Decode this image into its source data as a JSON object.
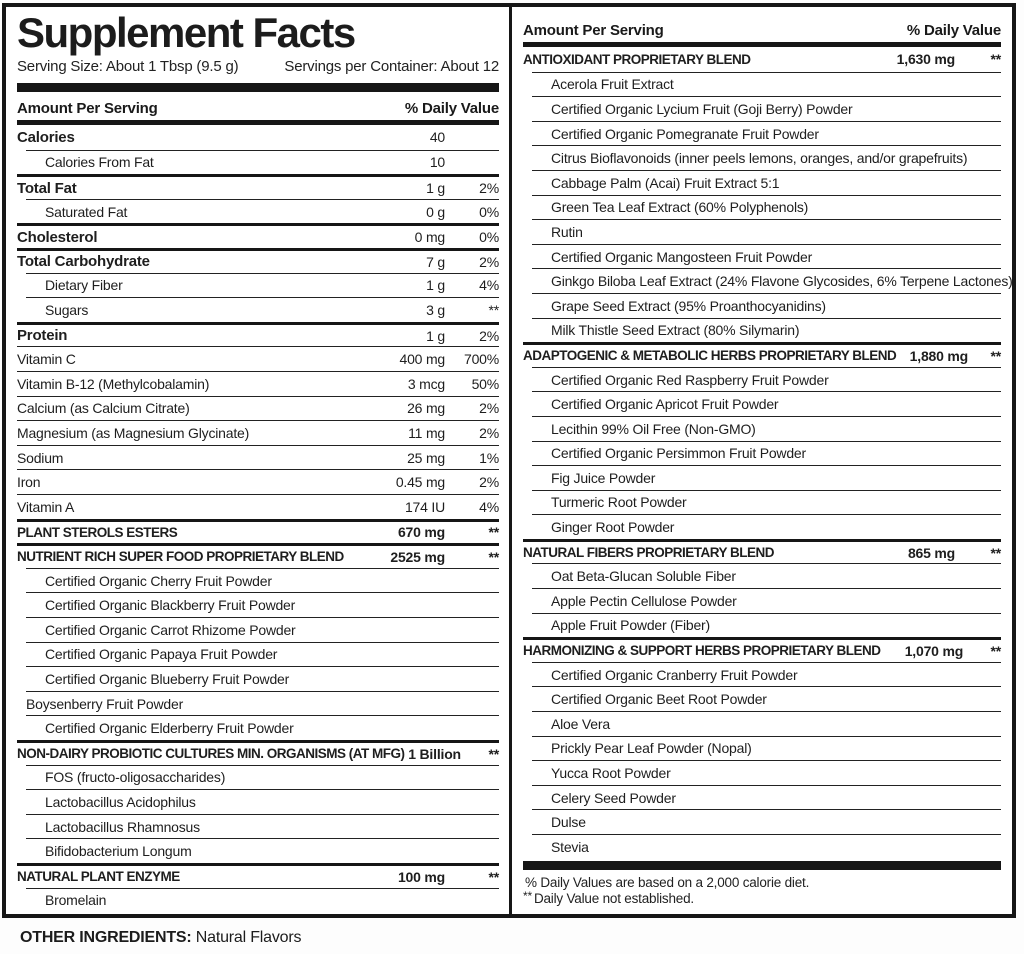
{
  "colors": {
    "ink": "#1a1a1a",
    "background": "#ffffff"
  },
  "title": "Supplement Facts",
  "serving_size": "Serving Size:  About 1 Tbsp (9.5 g)",
  "servings_per_container": "Servings per Container: About 12",
  "column_header": {
    "amount": "Amount Per Serving",
    "dv": "% Daily Value"
  },
  "left_rows": [
    {
      "name": "Calories",
      "amount": "40",
      "dv": "",
      "style": "main",
      "rule": "none"
    },
    {
      "name": "Calories From Fat",
      "amount": "10",
      "dv": "",
      "style": "sub",
      "rule": "thin"
    },
    {
      "name": "Total Fat",
      "amount": "1 g",
      "dv": "2%",
      "style": "main",
      "rule": "medium"
    },
    {
      "name": "Saturated Fat",
      "amount": "0 g",
      "dv": "0%",
      "style": "sub",
      "rule": "thin"
    },
    {
      "name": "Cholesterol",
      "amount": "0 mg",
      "dv": "0%",
      "style": "main",
      "rule": "medium"
    },
    {
      "name": "Total Carbohydrate",
      "amount": "7 g",
      "dv": "2%",
      "style": "main",
      "rule": "medium"
    },
    {
      "name": "Dietary Fiber",
      "amount": "1 g",
      "dv": "4%",
      "style": "sub",
      "rule": "thin"
    },
    {
      "name": "Sugars",
      "amount": "3 g",
      "dv": "**",
      "style": "sub",
      "rule": "thin"
    },
    {
      "name": "Protein",
      "amount": "1 g",
      "dv": "2%",
      "style": "main",
      "rule": "medium"
    },
    {
      "name": "Vitamin C",
      "amount": "400 mg",
      "dv": "700%",
      "style": "plain",
      "rule": "thin"
    },
    {
      "name": "Vitamin B-12 (Methylcobalamin)",
      "amount": "3 mcg",
      "dv": "50%",
      "style": "plain",
      "rule": "thin"
    },
    {
      "name": "Calcium (as Calcium Citrate)",
      "amount": "26 mg",
      "dv": "2%",
      "style": "plain",
      "rule": "thin"
    },
    {
      "name": "Magnesium (as Magnesium Glycinate)",
      "amount": "11 mg",
      "dv": "2%",
      "style": "plain",
      "rule": "thin"
    },
    {
      "name": "Sodium",
      "amount": "25 mg",
      "dv": "1%",
      "style": "plain",
      "rule": "thin"
    },
    {
      "name": "Iron",
      "amount": "0.45 mg",
      "dv": "2%",
      "style": "plain",
      "rule": "thin"
    },
    {
      "name": "Vitamin A",
      "amount": "174 IU",
      "dv": "4%",
      "style": "plain",
      "rule": "thin"
    },
    {
      "name": "PLANT STEROLS ESTERS",
      "amount": "670 mg",
      "dv": "**",
      "style": "section",
      "rule": "medium"
    },
    {
      "name": "NUTRIENT RICH SUPER FOOD PROPRIETARY BLEND",
      "amount": "2525 mg",
      "dv": "**",
      "style": "section",
      "rule": "medium"
    },
    {
      "name": "Certified Organic Cherry Fruit Powder",
      "amount": "",
      "dv": "",
      "style": "sub",
      "rule": "thin"
    },
    {
      "name": "Certified Organic Blackberry Fruit Powder",
      "amount": "",
      "dv": "",
      "style": "sub",
      "rule": "thin"
    },
    {
      "name": "Certified Organic Carrot Rhizome Powder",
      "amount": "",
      "dv": "",
      "style": "sub",
      "rule": "thin"
    },
    {
      "name": "Certified Organic Papaya Fruit Powder",
      "amount": "",
      "dv": "",
      "style": "sub",
      "rule": "thin"
    },
    {
      "name": "Certified Organic Blueberry Fruit Powder",
      "amount": "",
      "dv": "",
      "style": "sub",
      "rule": "thin"
    },
    {
      "name": "Boysenberry Fruit Powder",
      "amount": "",
      "dv": "",
      "style": "subflat",
      "rule": "thin"
    },
    {
      "name": "Certified Organic Elderberry Fruit Powder",
      "amount": "",
      "dv": "",
      "style": "sub",
      "rule": "thin"
    },
    {
      "name": "NON-DAIRY PROBIOTIC CULTURES MIN. ORGANISMS (AT MFG)",
      "amount": "1 Billion",
      "dv": "**",
      "style": "section",
      "rule": "medium"
    },
    {
      "name": "FOS (fructo-oligosaccharides)",
      "amount": "",
      "dv": "",
      "style": "sub",
      "rule": "thin"
    },
    {
      "name": "Lactobacillus Acidophilus",
      "amount": "",
      "dv": "",
      "style": "sub",
      "rule": "thin"
    },
    {
      "name": "Lactobacillus Rhamnosus",
      "amount": "",
      "dv": "",
      "style": "sub",
      "rule": "thin"
    },
    {
      "name": "Bifidobacterium Longum",
      "amount": "",
      "dv": "",
      "style": "sub",
      "rule": "thin"
    },
    {
      "name": "NATURAL PLANT ENZYME",
      "amount": "100 mg",
      "dv": "**",
      "style": "section",
      "rule": "medium"
    },
    {
      "name": "Bromelain",
      "amount": "",
      "dv": "",
      "style": "sub",
      "rule": "thin"
    }
  ],
  "right_rows": [
    {
      "name": "ANTIOXIDANT PROPRIETARY BLEND",
      "amount": "1,630 mg",
      "dv": "**",
      "style": "section",
      "rule": "none"
    },
    {
      "name": "Acerola Fruit Extract",
      "amount": "",
      "dv": "",
      "style": "sub",
      "rule": "thin"
    },
    {
      "name": "Certified Organic Lycium Fruit (Goji Berry) Powder",
      "amount": "",
      "dv": "",
      "style": "sub",
      "rule": "thin"
    },
    {
      "name": "Certified Organic Pomegranate Fruit Powder",
      "amount": "",
      "dv": "",
      "style": "sub",
      "rule": "thin"
    },
    {
      "name": "Citrus Bioflavonoids (inner peels lemons, oranges, and/or grapefruits)",
      "amount": "",
      "dv": "",
      "style": "sub",
      "rule": "thin"
    },
    {
      "name": "Cabbage Palm (Acai) Fruit Extract 5:1",
      "amount": "",
      "dv": "",
      "style": "sub",
      "rule": "thin"
    },
    {
      "name": "Green Tea Leaf Extract (60% Polyphenols)",
      "amount": "",
      "dv": "",
      "style": "sub",
      "rule": "thin"
    },
    {
      "name": "Rutin",
      "amount": "",
      "dv": "",
      "style": "sub",
      "rule": "thin"
    },
    {
      "name": "Certified Organic Mangosteen Fruit Powder",
      "amount": "",
      "dv": "",
      "style": "sub",
      "rule": "thin"
    },
    {
      "name": "Ginkgo Biloba Leaf Extract (24% Flavone Glycosides, 6% Terpene Lactones)",
      "amount": "",
      "dv": "",
      "style": "sub",
      "rule": "thin"
    },
    {
      "name": "Grape Seed Extract (95% Proanthocyanidins)",
      "amount": "",
      "dv": "",
      "style": "sub",
      "rule": "thin"
    },
    {
      "name": "Milk Thistle Seed Extract (80% Silymarin)",
      "amount": "",
      "dv": "",
      "style": "sub",
      "rule": "thin"
    },
    {
      "name": "ADAPTOGENIC & METABOLIC HERBS PROPRIETARY BLEND",
      "amount": "1,880 mg",
      "dv": "**",
      "style": "section",
      "rule": "medium"
    },
    {
      "name": "Certified Organic Red Raspberry Fruit Powder",
      "amount": "",
      "dv": "",
      "style": "sub",
      "rule": "thin"
    },
    {
      "name": "Certified Organic Apricot Fruit Powder",
      "amount": "",
      "dv": "",
      "style": "sub",
      "rule": "thin"
    },
    {
      "name": "Lecithin 99% Oil Free (Non-GMO)",
      "amount": "",
      "dv": "",
      "style": "sub",
      "rule": "thin"
    },
    {
      "name": "Certified Organic Persimmon Fruit Powder",
      "amount": "",
      "dv": "",
      "style": "sub",
      "rule": "thin"
    },
    {
      "name": "Fig Juice Powder",
      "amount": "",
      "dv": "",
      "style": "sub",
      "rule": "thin"
    },
    {
      "name": "Turmeric Root Powder",
      "amount": "",
      "dv": "",
      "style": "sub",
      "rule": "thin"
    },
    {
      "name": "Ginger Root Powder",
      "amount": "",
      "dv": "",
      "style": "sub",
      "rule": "thin"
    },
    {
      "name": "NATURAL FIBERS PROPRIETARY BLEND",
      "amount": "865 mg",
      "dv": "**",
      "style": "section",
      "rule": "medium"
    },
    {
      "name": "Oat Beta-Glucan Soluble Fiber",
      "amount": "",
      "dv": "",
      "style": "sub",
      "rule": "thin"
    },
    {
      "name": "Apple Pectin Cellulose Powder",
      "amount": "",
      "dv": "",
      "style": "sub",
      "rule": "thin"
    },
    {
      "name": "Apple Fruit Powder (Fiber)",
      "amount": "",
      "dv": "",
      "style": "sub",
      "rule": "thin"
    },
    {
      "name": "HARMONIZING & SUPPORT HERBS PROPRIETARY BLEND",
      "amount": "1,070 mg",
      "dv": "**",
      "style": "section",
      "rule": "medium"
    },
    {
      "name": "Certified Organic Cranberry Fruit Powder",
      "amount": "",
      "dv": "",
      "style": "sub",
      "rule": "thin"
    },
    {
      "name": "Certified Organic Beet Root Powder",
      "amount": "",
      "dv": "",
      "style": "sub",
      "rule": "thin"
    },
    {
      "name": "Aloe Vera",
      "amount": "",
      "dv": "",
      "style": "sub",
      "rule": "thin"
    },
    {
      "name": "Prickly Pear Leaf Powder (Nopal)",
      "amount": "",
      "dv": "",
      "style": "sub",
      "rule": "thin"
    },
    {
      "name": "Yucca Root Powder",
      "amount": "",
      "dv": "",
      "style": "sub",
      "rule": "thin"
    },
    {
      "name": "Celery Seed Powder",
      "amount": "",
      "dv": "",
      "style": "sub",
      "rule": "thin"
    },
    {
      "name": "Dulse",
      "amount": "",
      "dv": "",
      "style": "sub",
      "rule": "thin"
    },
    {
      "name": "Stevia",
      "amount": "",
      "dv": "",
      "style": "sub",
      "rule": "thin"
    }
  ],
  "footnotes": [
    {
      "sup": "",
      "text": "% Daily Values are based on a 2,000 calorie diet."
    },
    {
      "sup": "**",
      "text": "Daily Value not established."
    }
  ],
  "other_ingredients": {
    "label": "OTHER INGREDIENTS:",
    "value": "Natural Flavors"
  }
}
